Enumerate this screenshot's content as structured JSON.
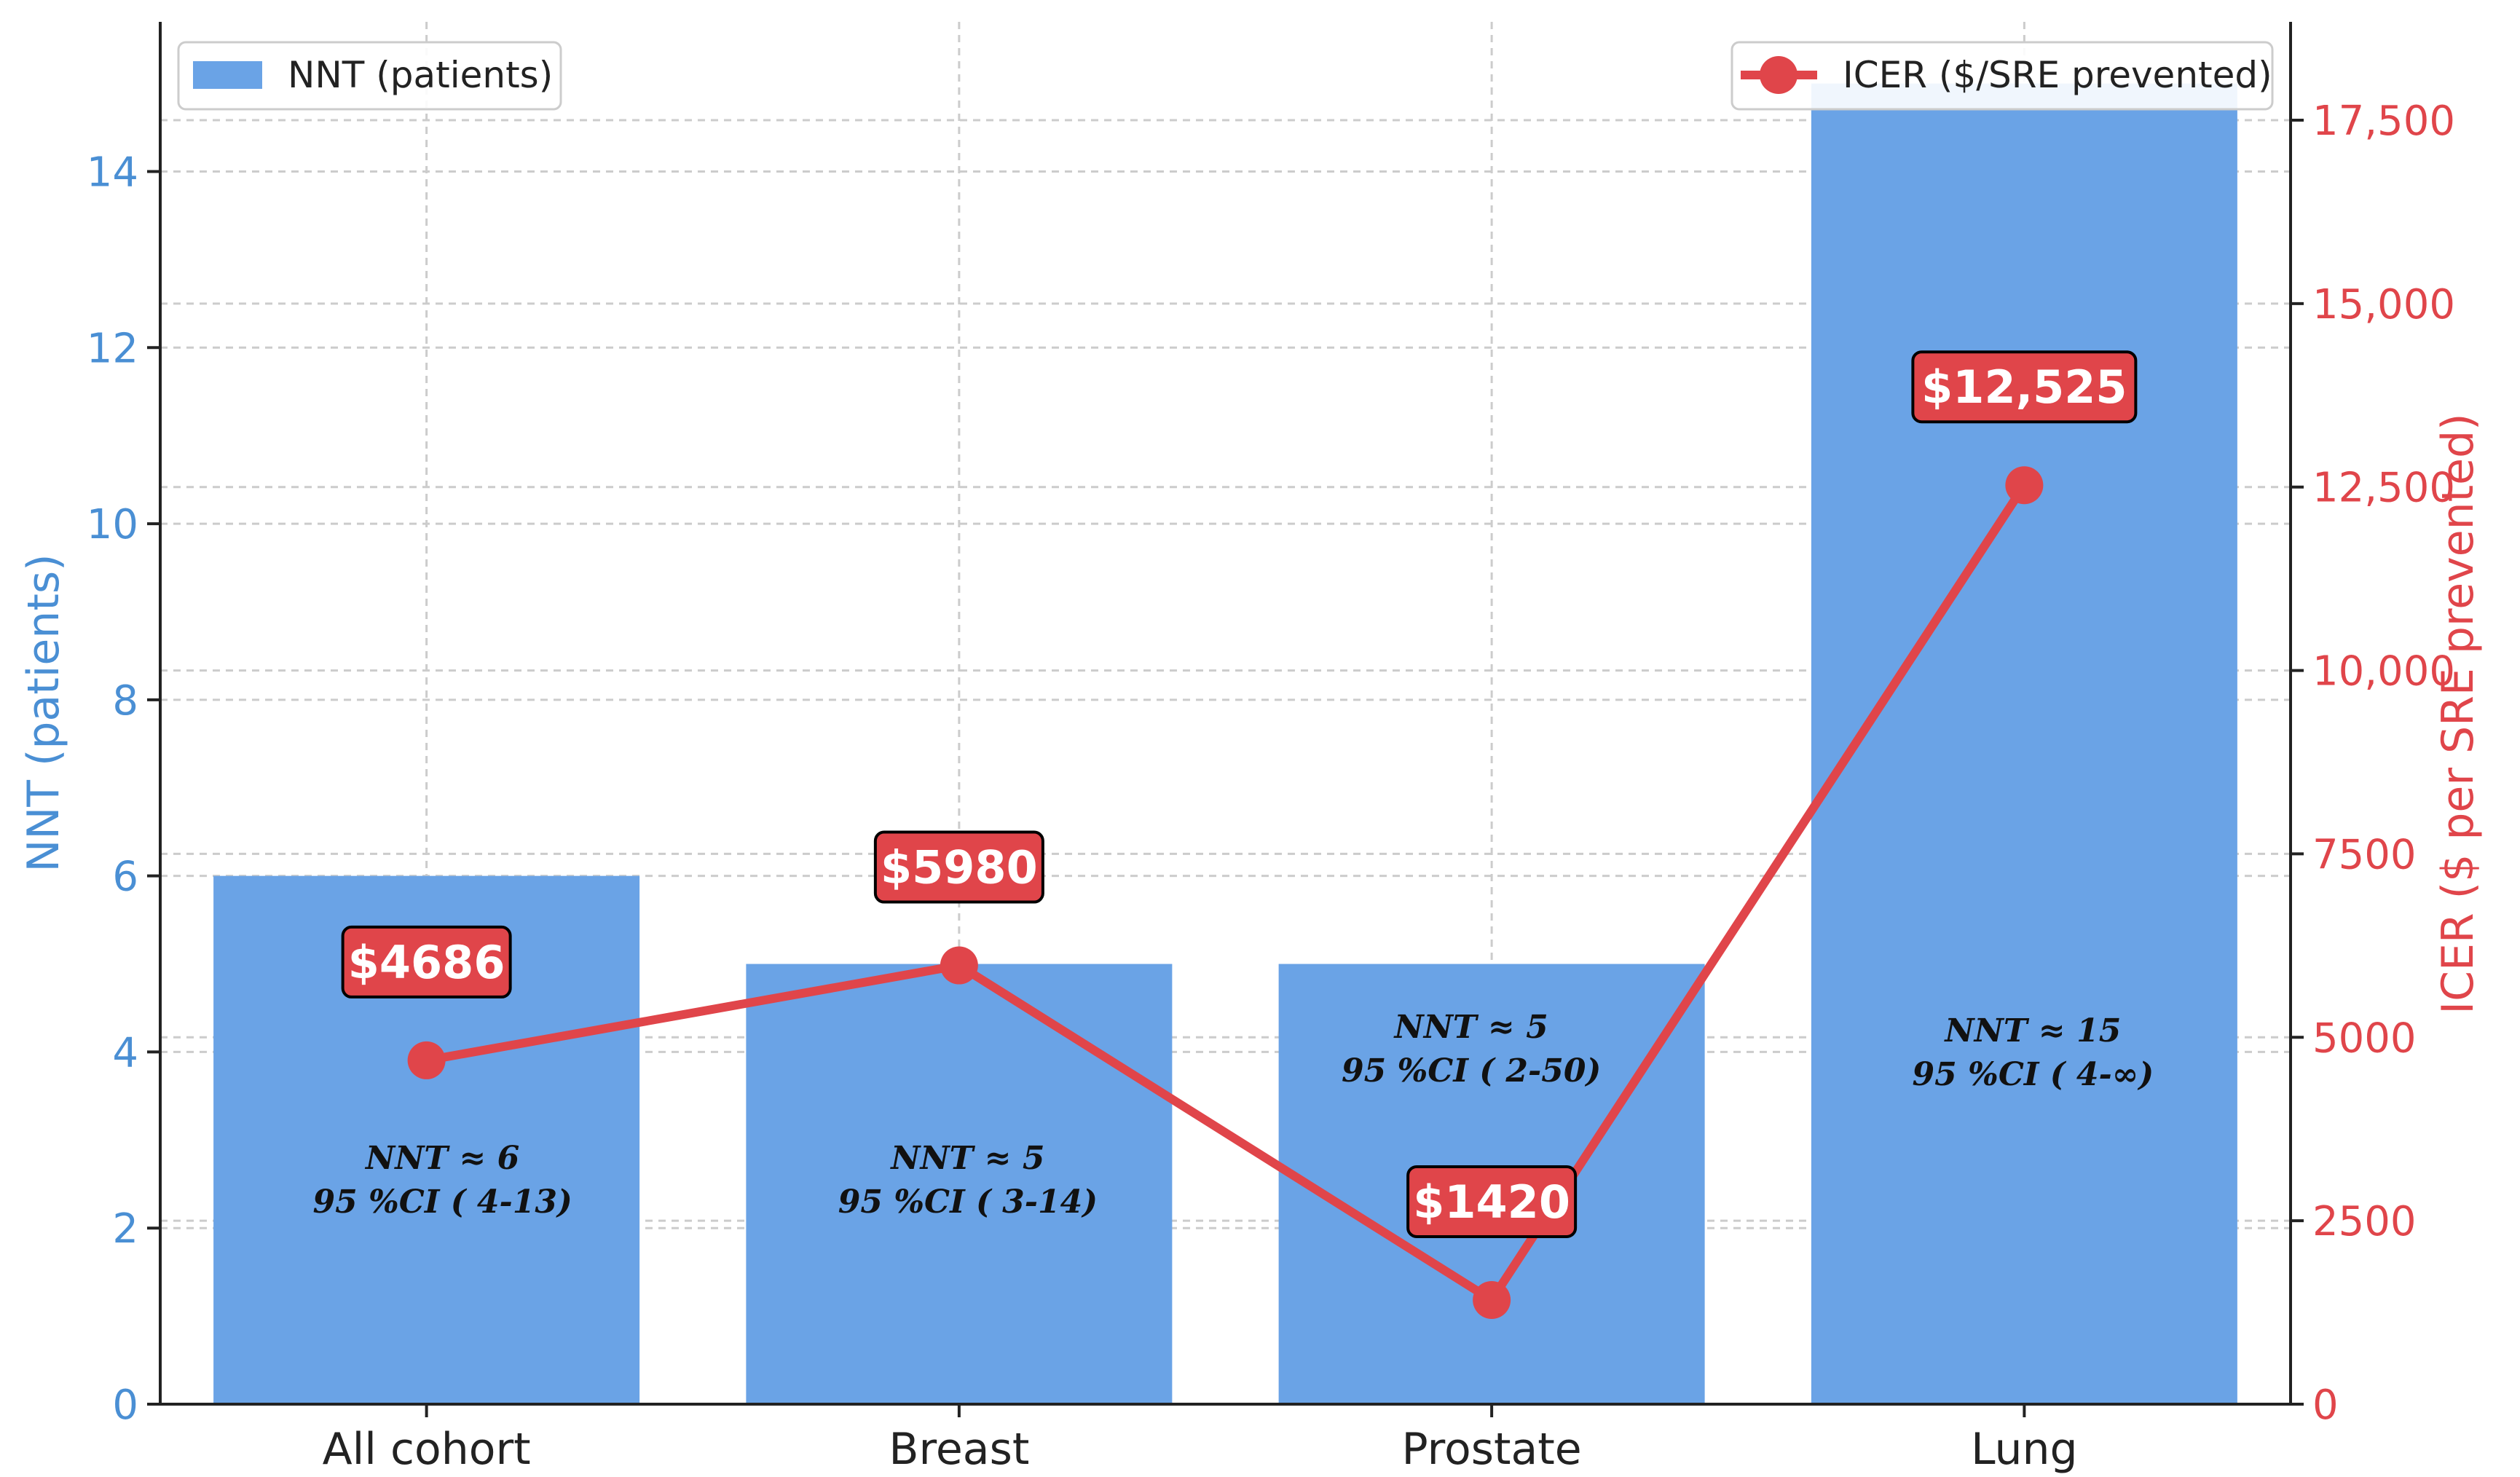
{
  "colors": {
    "bar": "#6aa3e6",
    "line": "#e0454a",
    "left_axis": "#4a8fd4",
    "right_axis": "#e0454a"
  },
  "chart_data": {
    "type": "bar",
    "categories": [
      "All cohort",
      "Breast",
      "Prostate",
      "Lung"
    ],
    "ylabel": "NNT (patients)",
    "y2label": "ICER ($ per SRE prevented)",
    "ylim": [
      0,
      15.7
    ],
    "y2lim": [
      0,
      17500
    ],
    "yticks": [
      "0",
      "2",
      "4",
      "6",
      "8",
      "10",
      "12",
      "14"
    ],
    "y2ticks": [
      "0",
      "2500",
      "5000",
      "7500",
      "10,000",
      "12,500",
      "15,000",
      "17,500"
    ],
    "grid": true,
    "legend": [
      {
        "name": "NNT (patients)",
        "position": "top-left",
        "marker": "bar"
      },
      {
        "name": "ICER ($/SRE prevented)",
        "position": "top-right",
        "marker": "line"
      }
    ],
    "series": [
      {
        "name": "NNT (patients)",
        "type": "bar",
        "axis": "left",
        "values": [
          6,
          5,
          5,
          15
        ]
      },
      {
        "name": "ICER ($/SRE prevented)",
        "type": "line",
        "axis": "right",
        "values": [
          4686,
          5980,
          1420,
          12525
        ]
      }
    ],
    "bar_annotations": [
      {
        "line1": "NNT ≈ 6",
        "line2": "95 %CI ( 4-13)"
      },
      {
        "line1": "NNT ≈ 5",
        "line2": "95 %CI ( 3-14)"
      },
      {
        "line1": "NNT ≈ 5",
        "line2": "95 %CI ( 2-50)"
      },
      {
        "line1": "NNT ≈ 15",
        "line2": "95 %CI ( 4-∞)"
      }
    ],
    "point_labels": [
      "$4686",
      "$5980",
      "$1420",
      "$12,525"
    ]
  }
}
